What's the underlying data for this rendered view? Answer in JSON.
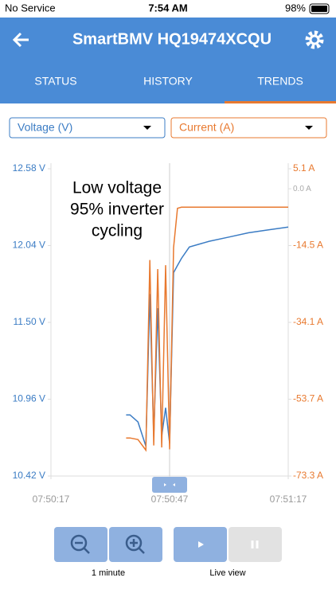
{
  "status_bar": {
    "carrier": "No Service",
    "time": "7:54 AM",
    "battery": "98%"
  },
  "header": {
    "title": "SmartBMV HQ19474XCQU"
  },
  "tabs": [
    "STATUS",
    "HISTORY",
    "TRENDS"
  ],
  "chart_data": {
    "type": "line",
    "annotation": [
      "Low voltage",
      "95% inverter",
      "cycling"
    ],
    "x": [
      "07:50:36",
      "07:50:37",
      "07:50:39",
      "07:50:41",
      "07:50:42",
      "07:50:43",
      "07:50:44",
      "07:50:45",
      "07:50:46",
      "07:50:47",
      "07:50:48",
      "07:50:49",
      "07:50:50",
      "07:50:52",
      "07:50:57",
      "07:51:02",
      "07:51:07",
      "07:51:12",
      "07:51:17"
    ],
    "xlim": [
      "07:50:17",
      "07:51:17"
    ],
    "xticks": [
      "07:50:17",
      "07:50:47",
      "07:51:17"
    ],
    "ylim": [
      10.42,
      12.58
    ],
    "yticks": [
      {
        "value": 12.58,
        "label": "12.58 V"
      },
      {
        "value": 12.04,
        "label": "12.04 V"
      },
      {
        "value": 11.5,
        "label": "11.50 V"
      },
      {
        "value": 10.96,
        "label": "10.96 V"
      },
      {
        "value": 10.42,
        "label": "10.42 V"
      }
    ],
    "y2lim": [
      -73.3,
      5.1
    ],
    "y2ticks": [
      {
        "value": 5.1,
        "label": "5.1 A"
      },
      {
        "value": -14.5,
        "label": "-14.5 A"
      },
      {
        "value": -34.1,
        "label": "-34.1 A"
      },
      {
        "value": -53.7,
        "label": "-53.7 A"
      },
      {
        "value": -73.3,
        "label": "-73.3 A"
      }
    ],
    "y2_reference": {
      "value": 0,
      "label": "0.0 A"
    },
    "series": [
      {
        "name": "Voltage (V)",
        "color": "#3b7cc4",
        "values": [
          10.85,
          10.85,
          10.8,
          10.63,
          11.7,
          10.7,
          11.6,
          10.7,
          10.9,
          10.65,
          11.85,
          11.9,
          11.95,
          12.03,
          12.07,
          12.1,
          12.13,
          12.15,
          12.17
        ]
      },
      {
        "name": "Current (A)",
        "color": "#e8792f",
        "axis": "y2",
        "values": [
          -63.6,
          -63.6,
          -64.0,
          -66.7,
          -18.2,
          -65.5,
          -20.5,
          -66.0,
          -19.5,
          -66.5,
          -15.0,
          -5.0,
          -4.7,
          -4.7,
          -4.7,
          -4.7,
          -4.7,
          -4.7,
          -4.7
        ]
      }
    ]
  },
  "controls": {
    "zoom_label": "1 minute",
    "live_label": "Live view"
  }
}
